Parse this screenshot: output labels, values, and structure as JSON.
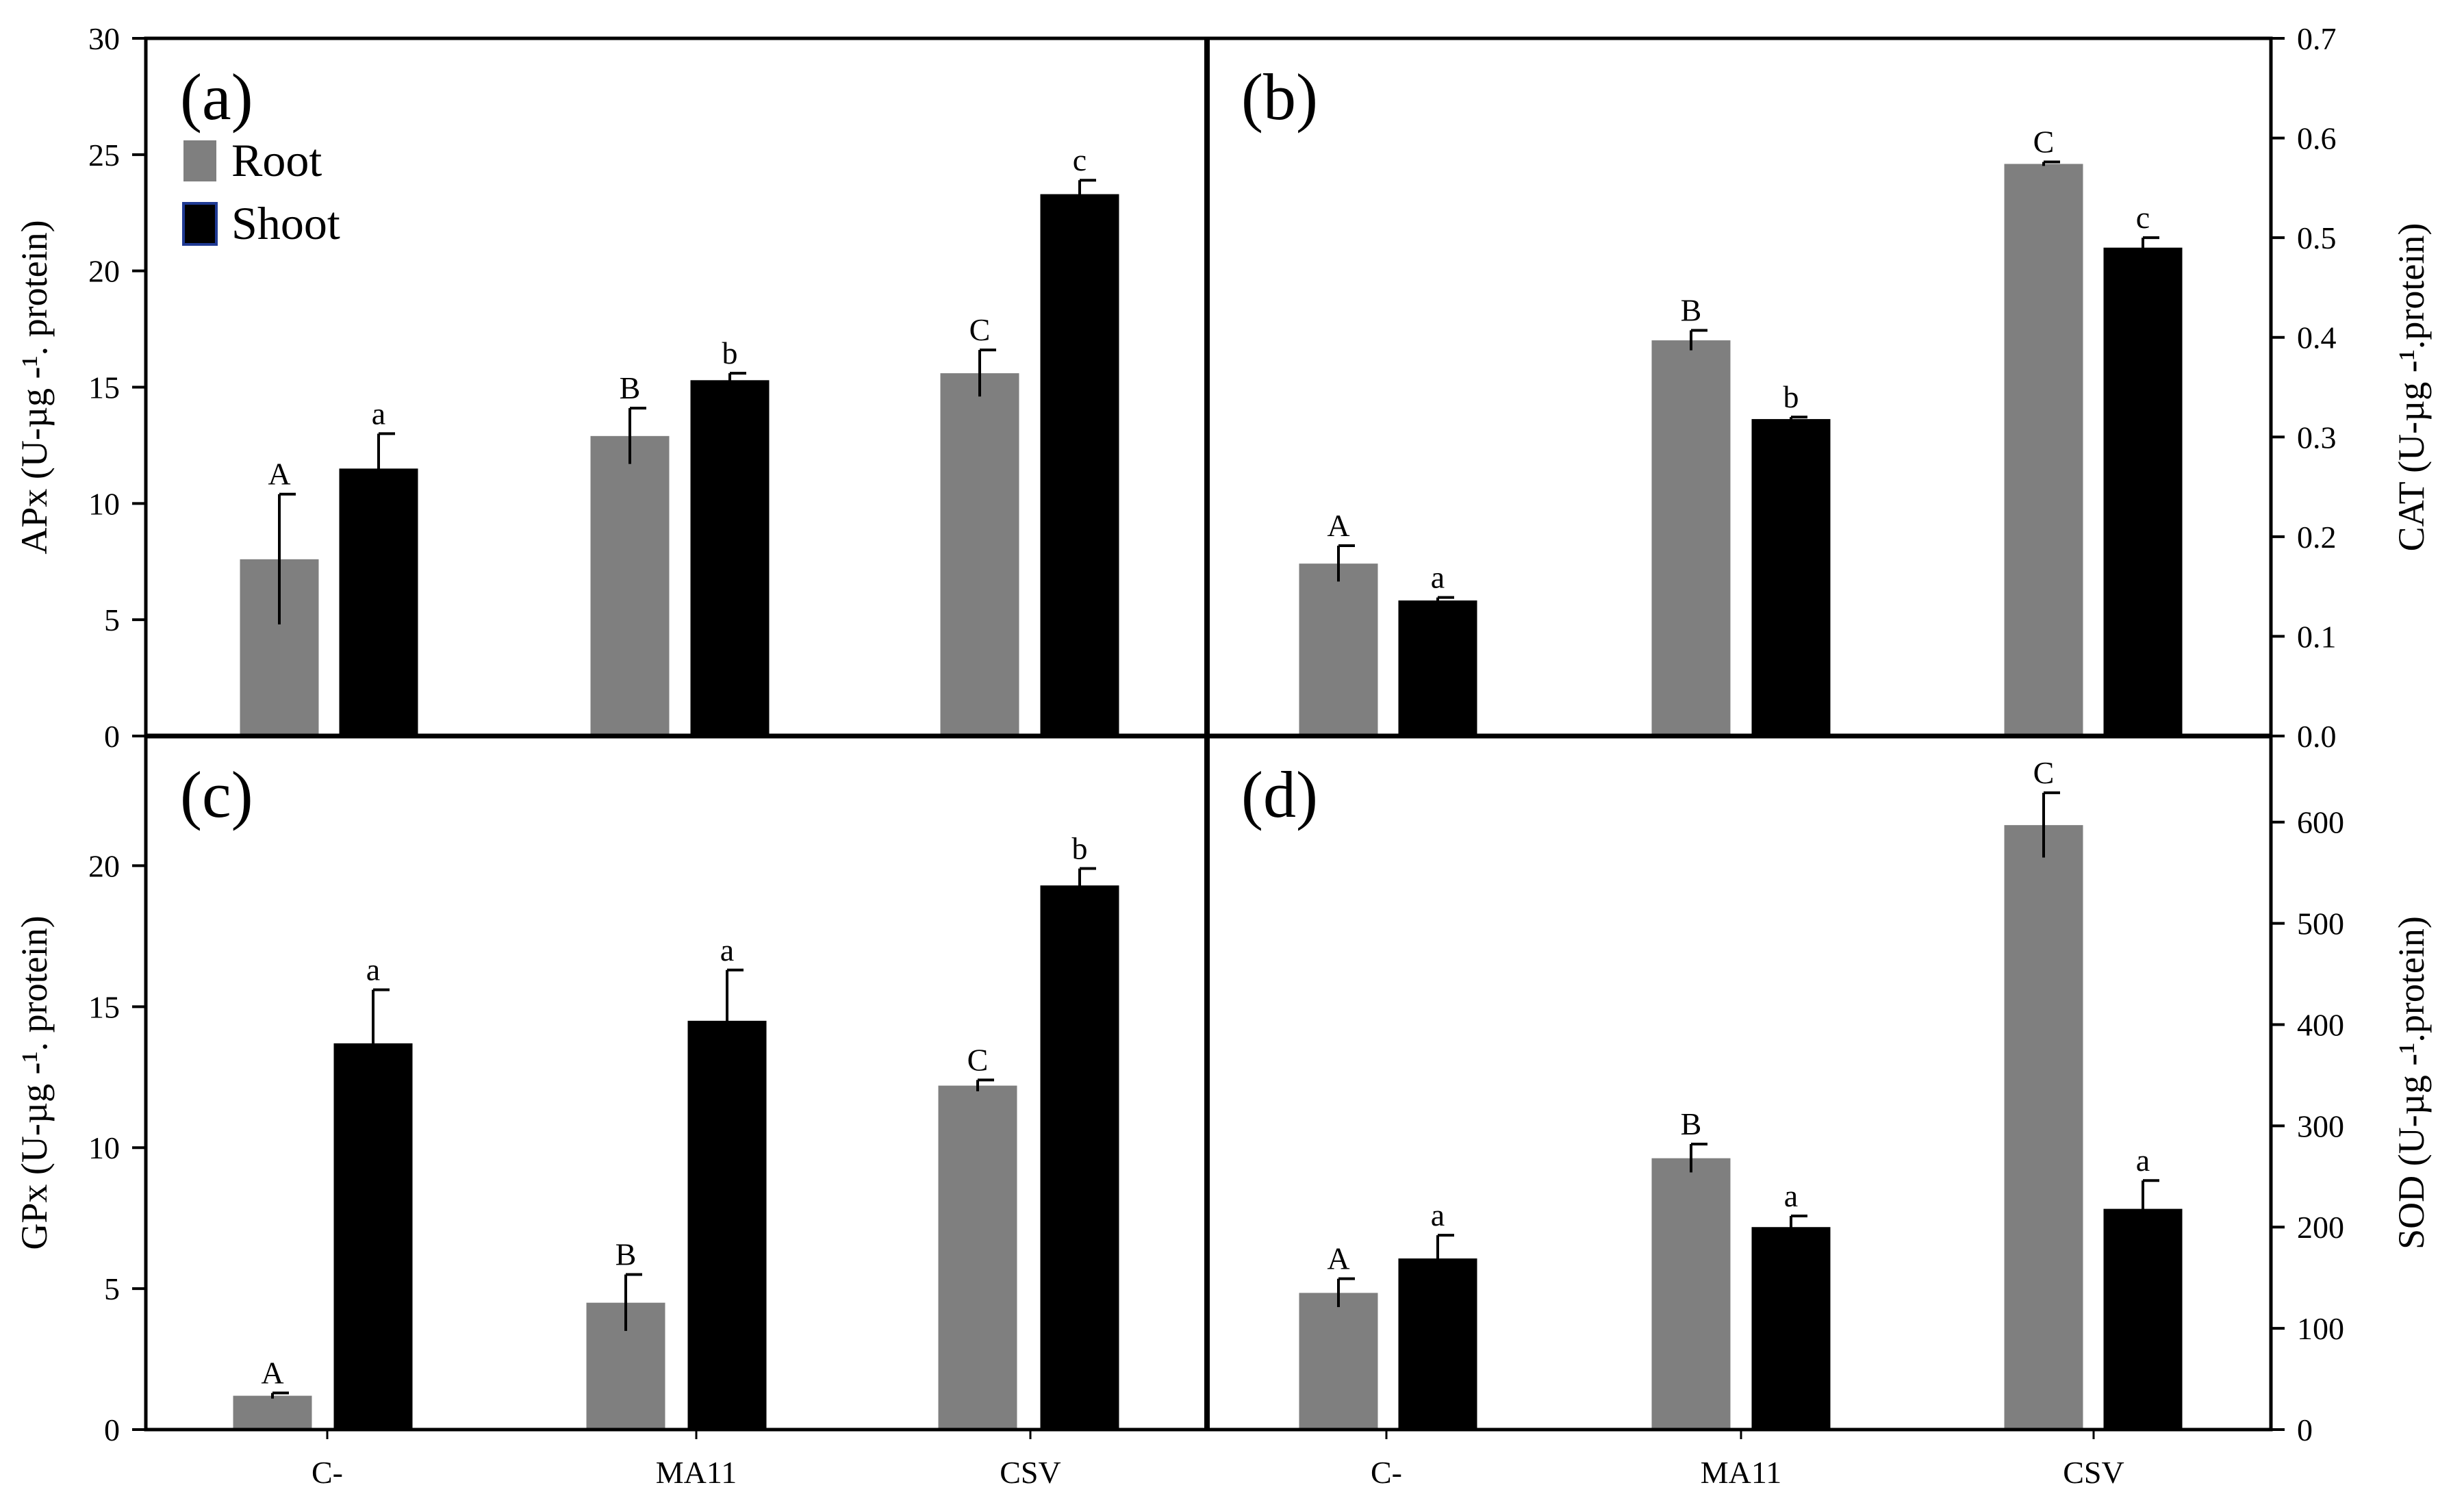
{
  "legend": [
    {
      "name": "Root",
      "color": "#7f7f7f"
    },
    {
      "name": "Shoot",
      "color": "#000000"
    }
  ],
  "chart_data": [
    {
      "type": "bar",
      "panel_label": "(a)",
      "ylabel": "APx (U-µg -¹. protein)",
      "categories": [
        "C-",
        "MA11",
        "CSV"
      ],
      "ylim": [
        0,
        30
      ],
      "ytick_labels": [
        "0",
        "5",
        "10",
        "15",
        "20",
        "25",
        "30"
      ],
      "series": [
        {
          "name": "Root",
          "color": "#7f7f7f",
          "values": [
            7.6,
            12.9,
            15.6
          ],
          "errors": [
            2.8,
            1.2,
            1.0
          ],
          "letters": [
            "A",
            "B",
            "C"
          ]
        },
        {
          "name": "Shoot",
          "color": "#000000",
          "values": [
            11.5,
            15.3,
            23.3
          ],
          "errors": [
            1.5,
            0.3,
            0.6
          ],
          "letters": [
            "a",
            "b",
            "c"
          ]
        }
      ]
    },
    {
      "type": "bar",
      "panel_label": "(b)",
      "ylabel": "CAT (U-µg -¹.protein)",
      "categories": [
        "C-",
        "MA11",
        "CSV"
      ],
      "ylim": [
        0,
        0.7
      ],
      "ytick_labels": [
        "0.0",
        "0.1",
        "0.2",
        "0.3",
        "0.4",
        "0.5",
        "0.6",
        "0.7"
      ],
      "series": [
        {
          "name": "Root",
          "color": "#7f7f7f",
          "values": [
            0.173,
            0.397,
            0.574
          ],
          "errors": [
            0.018,
            0.01,
            0.002
          ],
          "letters": [
            "A",
            "B",
            "C"
          ]
        },
        {
          "name": "Shoot",
          "color": "#000000",
          "values": [
            0.136,
            0.318,
            0.49
          ],
          "errors": [
            0.003,
            0.002,
            0.01
          ],
          "letters": [
            "a",
            "b",
            "c"
          ]
        }
      ]
    },
    {
      "type": "bar",
      "panel_label": "(c)",
      "ylabel": "GPx (U-µg -¹. protein)",
      "categories": [
        "C-",
        "MA11",
        "CSV"
      ],
      "ylim": [
        0,
        24.6
      ],
      "ytick_labels": [
        "0",
        "5",
        "10",
        "15",
        "20"
      ],
      "xtick_labels": [
        "C-",
        "MA11",
        "CSV"
      ],
      "series": [
        {
          "name": "Root",
          "color": "#7f7f7f",
          "values": [
            1.2,
            4.5,
            12.2
          ],
          "errors": [
            0.1,
            1.0,
            0.2
          ],
          "letters": [
            "A",
            "B",
            "C"
          ]
        },
        {
          "name": "Shoot",
          "color": "#000000",
          "values": [
            13.7,
            14.5,
            19.3
          ],
          "errors": [
            1.9,
            1.8,
            0.6
          ],
          "letters": [
            "a",
            "a",
            "b"
          ]
        }
      ]
    },
    {
      "type": "bar",
      "panel_label": "(d)",
      "ylabel": "SOD (U-µg -¹.protein)",
      "categories": [
        "C-",
        "MA11",
        "CSV"
      ],
      "ylim": [
        0,
        685
      ],
      "ytick_labels": [
        "0",
        "100",
        "200",
        "300",
        "400",
        "500",
        "600"
      ],
      "xtick_labels": [
        "C-",
        "MA11",
        "CSV"
      ],
      "series": [
        {
          "name": "Root",
          "color": "#7f7f7f",
          "values": [
            135,
            268,
            597
          ],
          "errors": [
            14,
            14,
            32
          ],
          "letters": [
            "A",
            "B",
            "C"
          ]
        },
        {
          "name": "Shoot",
          "color": "#000000",
          "values": [
            169,
            200,
            218
          ],
          "errors": [
            23,
            11,
            28
          ],
          "letters": [
            "a",
            "a",
            "a"
          ]
        }
      ]
    }
  ]
}
